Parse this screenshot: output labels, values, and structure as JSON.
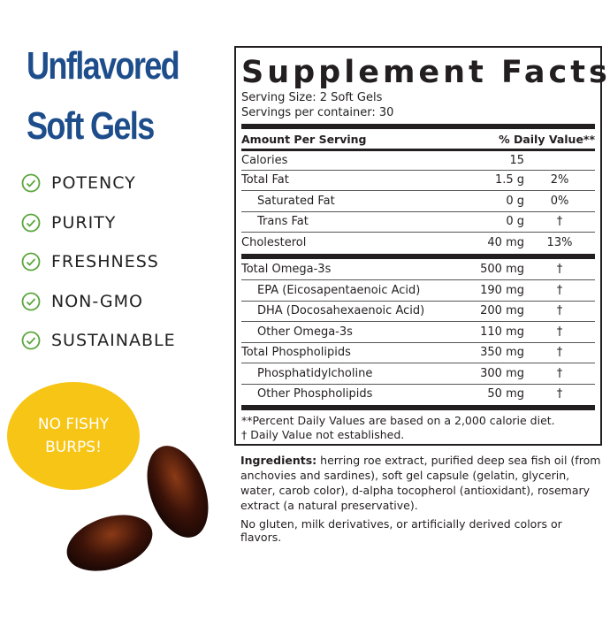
{
  "headline": {
    "line1": "Unflavored",
    "line2": "Soft Gels"
  },
  "features": [
    "POTENCY",
    "PURITY",
    "FRESHNESS",
    "NON-GMO",
    "SUSTAINABLE"
  ],
  "badge": {
    "line1": "NO FISHY",
    "line2": "BURPS!"
  },
  "colors": {
    "headline": "#1d4d8b",
    "check": "#5aa63c",
    "badge": "#f7c515"
  },
  "facts": {
    "title": "Supplement Facts",
    "serving_size": "Serving Size: 2 Soft Gels",
    "servings_per_container": "Servings per container: 30",
    "header": {
      "amount": "Amount Per Serving",
      "dv": "% Daily Value**"
    },
    "group1": [
      {
        "name": "Calories",
        "amount": "15",
        "dv": ""
      },
      {
        "name": "Total Fat",
        "amount": "1.5 g",
        "dv": "2%"
      },
      {
        "name": "Saturated Fat",
        "amount": "0 g",
        "dv": "0%",
        "indent": true
      },
      {
        "name": "Trans Fat",
        "amount": "0 g",
        "dv": "†",
        "indent": true
      },
      {
        "name": "Cholesterol",
        "amount": "40 mg",
        "dv": "13%"
      }
    ],
    "group2": [
      {
        "name": "Total Omega-3s",
        "amount": "500 mg",
        "dv": "†"
      },
      {
        "name": "EPA (Eicosapentaenoic Acid)",
        "amount": "190 mg",
        "dv": "†",
        "indent": true
      },
      {
        "name": "DHA (Docosahexaenoic Acid)",
        "amount": "200 mg",
        "dv": "†",
        "indent": true
      },
      {
        "name": "Other Omega-3s",
        "amount": "110 mg",
        "dv": "†",
        "indent": true
      },
      {
        "name": "Total Phospholipids",
        "amount": "350 mg",
        "dv": "†"
      },
      {
        "name": "Phosphatidylcholine",
        "amount": "300 mg",
        "dv": "†",
        "indent": true
      },
      {
        "name": "Other Phospholipids",
        "amount": "50 mg",
        "dv": "†",
        "indent": true
      }
    ],
    "footnote1": "**Percent Daily Values are based on a 2,000 calorie diet.",
    "footnote2": "†  Daily Value not established."
  },
  "ingredients": {
    "label": "Ingredients:",
    "text": " herring roe extract, purified deep sea fish oil (from anchovies and sardines), soft gel capsule (gelatin, glycerin, water, carob color), d-alpha tocopherol (antioxidant), rosemary extract (a natural preservative)."
  },
  "free_from": "No gluten, milk derivatives, or artificially derived colors or flavors."
}
